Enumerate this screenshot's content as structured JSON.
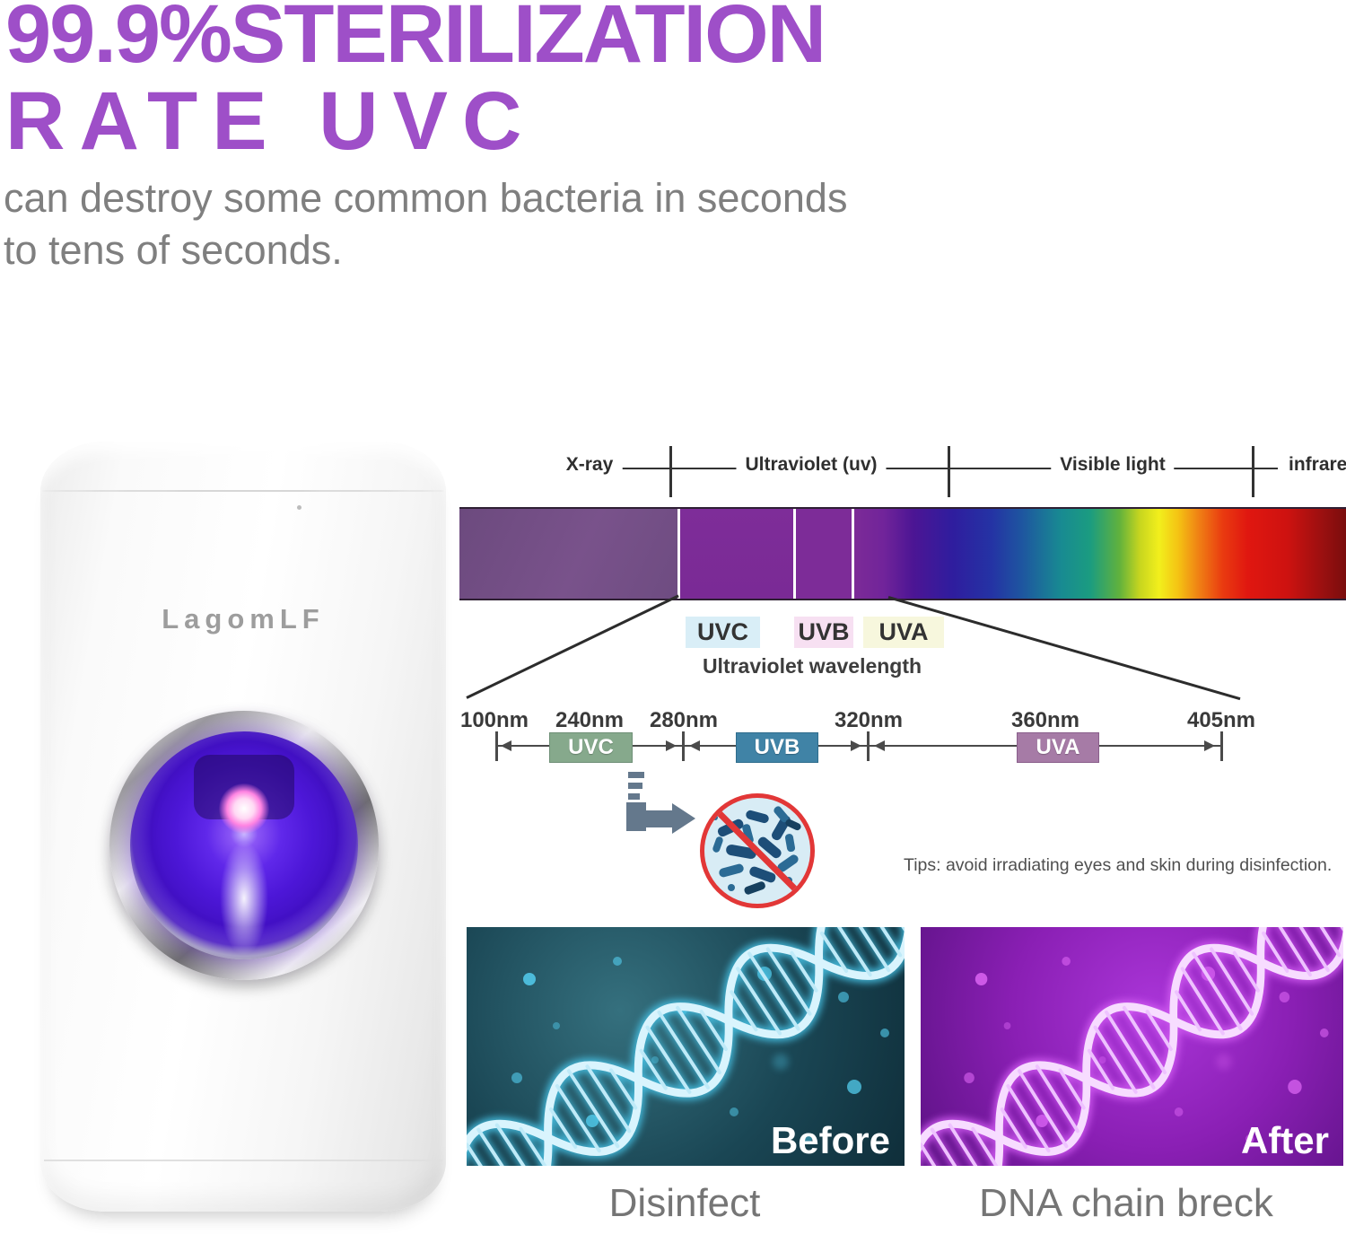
{
  "heading": {
    "line1": "99.9%STERILIZATION",
    "line2": "RATE UVC",
    "color": "#9e4fc8"
  },
  "subtitle": {
    "line1": "can destroy some common bacteria in seconds",
    "line2": "to tens of seconds."
  },
  "product": {
    "brand": "LagomLF",
    "light_color": "#5a1fe6"
  },
  "spectrum": {
    "band_labels": [
      {
        "label": "X-ray"
      },
      {
        "label": "Ultraviolet (uv)"
      },
      {
        "label": "Visible light"
      },
      {
        "label": "infrared"
      }
    ],
    "uv_chips": [
      {
        "label": "UVC",
        "bg": "#d9eef7"
      },
      {
        "label": "UVB",
        "bg": "#f7e0f2"
      },
      {
        "label": "UVA",
        "bg": "#f7f7dd"
      }
    ],
    "caption": "Ultraviolet wavelength"
  },
  "wavelength_scale": {
    "tick_labels": [
      "100nm",
      "240nm",
      "280nm",
      "320nm",
      "360nm",
      "405nm"
    ],
    "ranges": [
      {
        "label": "UVC",
        "color": "#86a98c"
      },
      {
        "label": "UVB",
        "color": "#4083a6"
      },
      {
        "label": "UVA",
        "color": "#a67ba6"
      }
    ]
  },
  "tips": "Tips: avoid irradiating eyes and skin during disinfection.",
  "icons": {
    "step_arrow": "step-down-right-arrow",
    "no_bacteria": "prohibited-bacteria"
  },
  "comparison": {
    "before": {
      "overlay": "Before",
      "caption": "Disinfect"
    },
    "after": {
      "overlay": "After",
      "caption": "DNA chain breck"
    }
  }
}
